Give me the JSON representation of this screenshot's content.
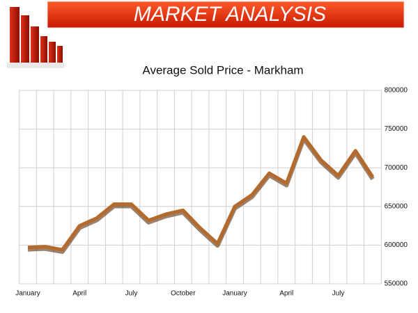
{
  "header": {
    "title": "MARKET ANALYSIS"
  },
  "chart_data": {
    "type": "line",
    "title": "Average Sold Price - Markham",
    "categories": [
      "January",
      null,
      null,
      "April",
      null,
      null,
      "July",
      null,
      null,
      "October",
      null,
      null,
      "January",
      null,
      null,
      "April",
      null,
      null,
      "July",
      null,
      null
    ],
    "values": [
      597000,
      598000,
      594000,
      625000,
      635000,
      653000,
      653000,
      632000,
      640000,
      645000,
      622000,
      602000,
      650000,
      665000,
      693000,
      680000,
      740000,
      710000,
      690000,
      722000,
      688000
    ],
    "color": "#b36a2c",
    "ylim": [
      550000,
      800000
    ],
    "yticks": [
      550000,
      600000,
      650000,
      700000,
      750000,
      800000
    ],
    "grid": true
  }
}
